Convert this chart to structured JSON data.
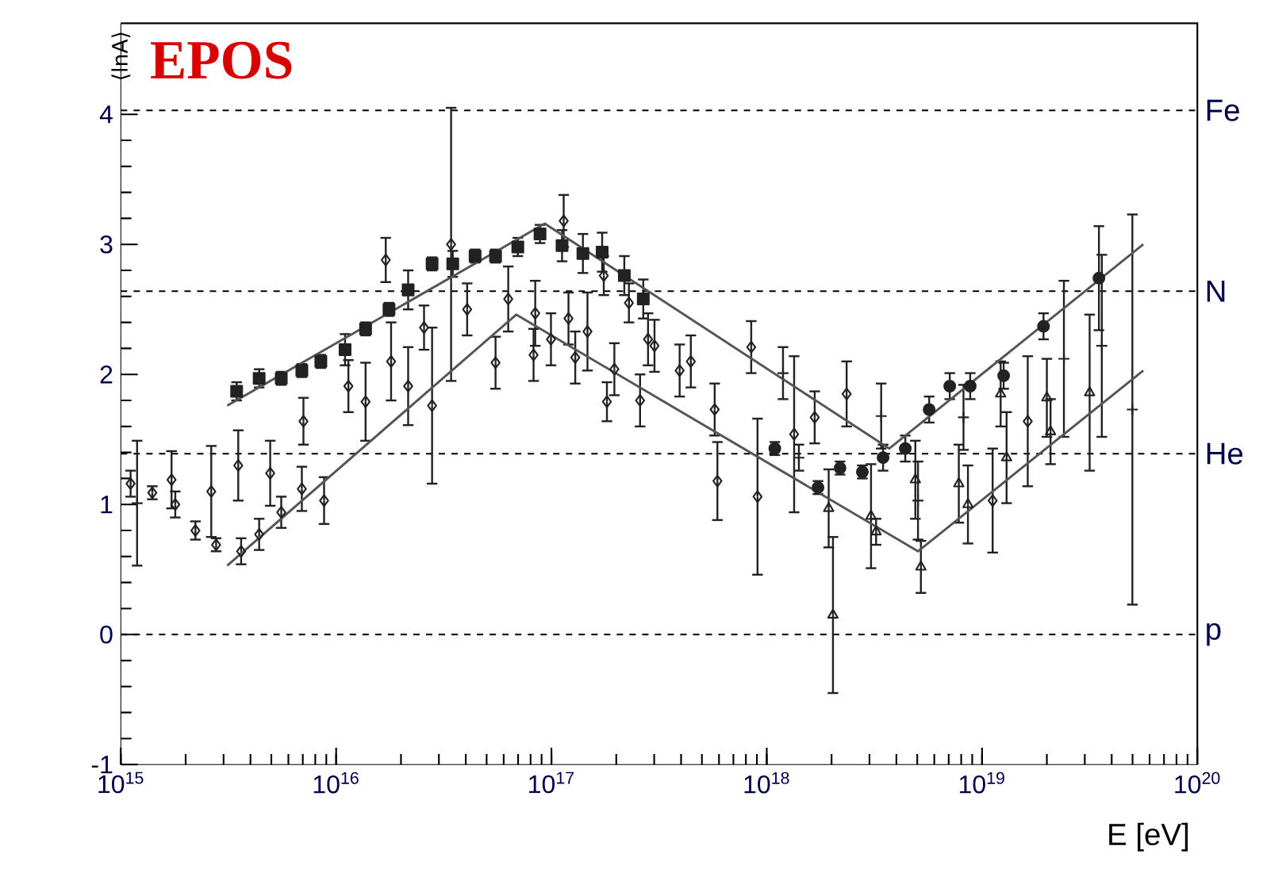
{
  "chart_data": {
    "type": "scatter",
    "title": "EPOS",
    "xlabel": "E [eV]",
    "ylabel": "⟨lnA⟩",
    "log": "x",
    "xlim": [
      1000000000000000.0,
      1e+20
    ],
    "ylim": [
      -1,
      4.7
    ],
    "xticks": [
      {
        "value": 1000000000000000.0,
        "label": "10$^{15}$"
      },
      {
        "value": 1e+16,
        "label": "10$^{16}$"
      },
      {
        "value": 1e+17,
        "label": "10$^{17}$"
      },
      {
        "value": 1e+18,
        "label": "10$^{18}$"
      },
      {
        "value": 1e+19,
        "label": "10$^{19}$"
      },
      {
        "value": 1e+20,
        "label": "10$^{20}$"
      }
    ],
    "yticks": [
      -1,
      0,
      1,
      2,
      3,
      4
    ],
    "ref_lines": [
      {
        "axis": "y",
        "value": 4.03,
        "label": "Fe",
        "line_style": "dashed"
      },
      {
        "axis": "y",
        "value": 2.64,
        "label": "N",
        "line_style": "dashed"
      },
      {
        "axis": "y",
        "value": 1.39,
        "label": "He",
        "line_style": "dashed"
      },
      {
        "axis": "y",
        "value": 0,
        "label": "p",
        "line_style": "dashed"
      }
    ],
    "series": [
      {
        "marker": "square",
        "color": "#222222",
        "x": [
          3450000000000000.0,
          4390000000000000.0,
          5560000000000000.0,
          6930000000000000.0,
          8490000000000000.0,
          1.1e+16,
          1.37e+16,
          1.76e+16,
          2.16e+16,
          2.79e+16,
          3.48e+16,
          4.42e+16,
          5.5e+16,
          6.98e+16,
          8.85e+16,
          1.12e+17,
          1.4e+17,
          1.72e+17,
          2.18e+17,
          2.67e+17
        ],
        "values": [
          1.87,
          1.97,
          1.97,
          2.03,
          2.1,
          2.19,
          2.35,
          2.5,
          2.65,
          2.85,
          2.85,
          2.91,
          2.91,
          2.98,
          3.08,
          2.99,
          2.93,
          2.94,
          2.76,
          2.58
        ],
        "errors": [
          0.07,
          0.07,
          0.05,
          0.05,
          0.05,
          0.12,
          0.05,
          0.05,
          0.15,
          0.05,
          0.1,
          0.05,
          0.05,
          0.07,
          0.07,
          0.12,
          0.15,
          0.15,
          0.15,
          0.15
        ]
      },
      {
        "marker": "diamond",
        "color": "#222222",
        "x": [
          1110000000000000.0,
          1400000000000000.0,
          1720000000000000.0,
          1790000000000000.0,
          2220000000000000.0,
          2630000000000000.0,
          2770000000000000.0,
          3510000000000000.0,
          3620000000000000.0,
          4390000000000000.0,
          4940000000000000.0,
          5560000000000000.0,
          6930000000000000.0,
          7050000000000000.0,
          8790000000000000.0,
          1.14e+16,
          1.37e+16,
          1.7e+16,
          1.8e+16,
          2.16e+16,
          2.56e+16,
          2.79e+16,
          3.42e+16,
          4.06e+16,
          5.5e+16,
          6.3e+16,
          8.26e+16,
          9.95e+16,
          1.14e+17,
          1.47e+17,
          1.75e+17,
          1.96e+17,
          2.29e+17,
          2.81e+17,
          3.01e+17,
          4.44e+17,
          5.73e+17,
          8.47e+17,
          1.67e+18,
          2.35e+18,
          1.12e+19,
          1.63e+19,
          8.41e+16,
          1.2e+17,
          1.29e+17,
          1.81e+17,
          2.58e+17,
          3.94e+17,
          5.9e+17,
          9.06e+17,
          1.34e+18
        ],
        "values": [
          1.16,
          1.09,
          1.19,
          1.0,
          0.8,
          1.1,
          0.69,
          1.3,
          0.64,
          0.77,
          1.24,
          0.94,
          1.12,
          1.64,
          1.03,
          1.91,
          1.79,
          2.88,
          2.1,
          1.91,
          2.36,
          1.76,
          3.0,
          2.5,
          2.09,
          2.58,
          2.15,
          2.27,
          3.18,
          2.33,
          2.76,
          2.04,
          2.55,
          2.27,
          2.22,
          2.1,
          1.73,
          2.21,
          1.67,
          1.85,
          1.03,
          1.64,
          2.47,
          2.43,
          2.13,
          1.79,
          1.8,
          2.03,
          1.18,
          1.06,
          1.54
        ],
        "errors": [
          0.1,
          0.05,
          0.22,
          0.1,
          0.07,
          0.35,
          0.05,
          0.27,
          0.1,
          0.12,
          0.25,
          0.12,
          0.17,
          0.18,
          0.18,
          0.2,
          0.3,
          0.17,
          0.3,
          0.3,
          0.17,
          0.6,
          1.05,
          0.2,
          0.2,
          0.25,
          0.2,
          0.2,
          0.2,
          0.3,
          0.15,
          0.2,
          0.15,
          0.2,
          0.2,
          0.2,
          0.2,
          0.2,
          0.2,
          0.25,
          0.4,
          0.5,
          0.25,
          0.2,
          0.2,
          0.15,
          0.2,
          0.2,
          0.3,
          0.6,
          0.6
        ]
      },
      {
        "marker": "circle",
        "color": "#222222",
        "x": [
          1.09e+18,
          1.73e+18,
          2.19e+18,
          2.78e+18,
          3.47e+18,
          4.4e+18,
          5.68e+18,
          7.08e+18,
          8.81e+18,
          1.26e+19,
          1.93e+19,
          3.49e+19
        ],
        "values": [
          1.43,
          1.13,
          1.28,
          1.25,
          1.36,
          1.43,
          1.73,
          1.91,
          1.91,
          1.99,
          2.37,
          2.74
        ],
        "errors": [
          0.05,
          0.05,
          0.05,
          0.05,
          0.1,
          0.1,
          0.1,
          0.1,
          0.1,
          0.1,
          0.1,
          0.4
        ]
      },
      {
        "marker": "cross",
        "color": "#222222",
        "x": [
          1190000000000000.0,
          1.19e+18,
          1.41e+18,
          3.4e+18,
          5.04e+18,
          8.2e+18,
          2.4e+19,
          3.6e+19,
          4.99e+19
        ],
        "values": [
          1.01,
          2.01,
          1.36,
          1.68,
          1.03,
          1.67,
          2.12,
          2.22,
          1.73
        ],
        "errors": [
          0.48,
          0.2,
          0.1,
          0.25,
          0.3,
          0.25,
          0.6,
          0.7,
          1.5
        ]
      },
      {
        "marker": "triangle",
        "color": "#222222",
        "x": [
          1.94e+18,
          2.03e+18,
          3.05e+18,
          3.22e+18,
          4.9e+18,
          5.2e+18,
          7.8e+18,
          8.6e+18,
          1.22e+19,
          1.3e+19,
          2e+19,
          2.08e+19,
          3.16e+19
        ],
        "values": [
          0.97,
          0.15,
          0.91,
          0.79,
          1.19,
          0.52,
          1.16,
          1.0,
          1.85,
          1.36,
          1.82,
          1.56,
          1.86
        ],
        "errors": [
          0.3,
          0.6,
          0.4,
          0.1,
          0.3,
          0.2,
          0.3,
          0.3,
          0.25,
          0.35,
          0.3,
          0.25,
          0.6
        ]
      },
      {
        "type": "line",
        "marker": "none",
        "color": "#555555",
        "x": [
          3120000000000000.0,
          9.31e+16,
          3.71e+18,
          5.61e+19
        ],
        "values": [
          1.76,
          3.16,
          1.43,
          3.0
        ]
      },
      {
        "type": "line",
        "marker": "none",
        "color": "#555555",
        "x": [
          3120000000000000.0,
          6.86e+16,
          5.04e+18,
          5.61e+19
        ],
        "values": [
          0.53,
          2.46,
          0.64,
          2.03
        ]
      }
    ]
  }
}
